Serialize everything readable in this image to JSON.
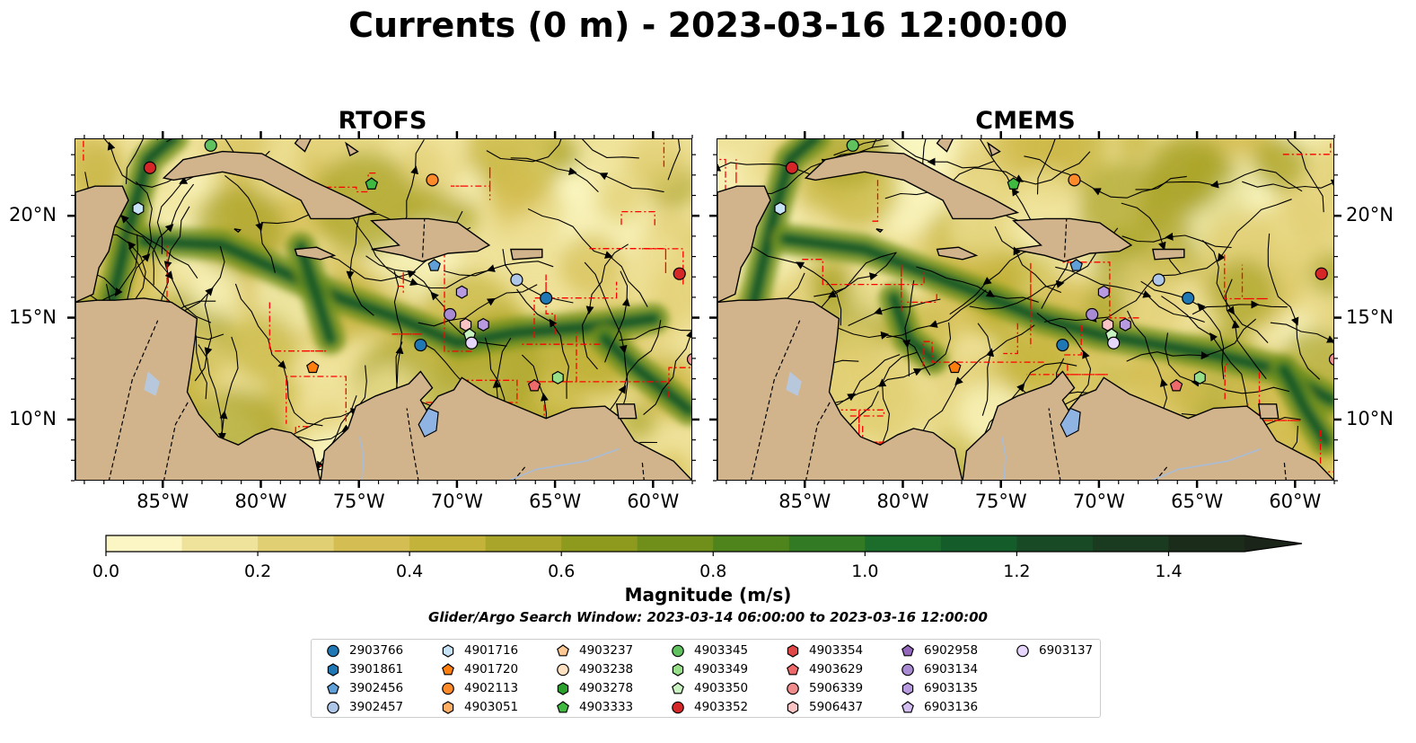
{
  "title": "Currents (0 m) - 2023-03-16 12:00:00",
  "panels": [
    {
      "title": "RTOFS"
    },
    {
      "title": "CMEMS"
    }
  ],
  "lon_ticks": [
    "85°W",
    "80°W",
    "75°W",
    "70°W",
    "65°W",
    "60°W"
  ],
  "lat_ticks": [
    "20°N",
    "15°N",
    "10°N"
  ],
  "colorbar": {
    "label": "Magnitude (m/s)",
    "ticks": [
      "0.0",
      "0.2",
      "0.4",
      "0.6",
      "0.8",
      "1.0",
      "1.2",
      "1.4"
    ],
    "range": [
      0,
      1.5
    ],
    "extend": "max",
    "colors": [
      "#fbf6c3",
      "#efe29a",
      "#e1cf73",
      "#d4bd53",
      "#c4b33b",
      "#a9a42a",
      "#8e9a1d",
      "#6f8e1a",
      "#4f831c",
      "#327a23",
      "#1c6c2b",
      "#155c2b",
      "#184a25",
      "#1a3b1f",
      "#1b2d1a"
    ],
    "extend_color": "#1b2418"
  },
  "search_window": "Glider/Argo Search Window: 2023-03-14 06:00:00 to 2023-03-16 12:00:00",
  "colors": {
    "land": "#d2b48c",
    "lake": "#8fb4e3",
    "river": "#a8bcd6",
    "eez": "#ff0000"
  },
  "legend": [
    {
      "id": "2903766",
      "marker": "circle",
      "color": "#1f77b4"
    },
    {
      "id": "3901861",
      "marker": "hexagon",
      "color": "#1f77b4"
    },
    {
      "id": "3902456",
      "marker": "pentagon",
      "color": "#5fa0d8"
    },
    {
      "id": "3902457",
      "marker": "circle",
      "color": "#aec7e8"
    },
    {
      "id": "4901716",
      "marker": "hexagon",
      "color": "#c6e2f7"
    },
    {
      "id": "4901720",
      "marker": "pentagon",
      "color": "#ff7f0e"
    },
    {
      "id": "4902113",
      "marker": "circle",
      "color": "#ff8a2a"
    },
    {
      "id": "4903051",
      "marker": "hexagon",
      "color": "#ffae64"
    },
    {
      "id": "4903237",
      "marker": "pentagon",
      "color": "#ffc994"
    },
    {
      "id": "4903238",
      "marker": "circle",
      "color": "#ffe0c0"
    },
    {
      "id": "4903278",
      "marker": "hexagon",
      "color": "#2ca02c"
    },
    {
      "id": "4903333",
      "marker": "pentagon",
      "color": "#3fb93f"
    },
    {
      "id": "4903345",
      "marker": "circle",
      "color": "#5fc25f"
    },
    {
      "id": "4903349",
      "marker": "hexagon",
      "color": "#98df8a"
    },
    {
      "id": "4903350",
      "marker": "pentagon",
      "color": "#c8f2bf"
    },
    {
      "id": "4903352",
      "marker": "circle",
      "color": "#d62728"
    },
    {
      "id": "4903354",
      "marker": "hexagon",
      "color": "#e04848"
    },
    {
      "id": "4903629",
      "marker": "pentagon",
      "color": "#ee6a6a"
    },
    {
      "id": "5906339",
      "marker": "circle",
      "color": "#f08c8c"
    },
    {
      "id": "5906437",
      "marker": "hexagon",
      "color": "#fbc4c4"
    },
    {
      "id": "6902958",
      "marker": "pentagon",
      "color": "#9467bd"
    },
    {
      "id": "6903134",
      "marker": "circle",
      "color": "#a98bd4"
    },
    {
      "id": "6903135",
      "marker": "hexagon",
      "color": "#b89ae0"
    },
    {
      "id": "6903136",
      "marker": "pentagon",
      "color": "#d3bdf0"
    },
    {
      "id": "6903137",
      "marker": "circle",
      "color": "#e6d6fb"
    }
  ],
  "floats_rtofs": [
    {
      "lon": -85.7,
      "lat": 22.4,
      "id": "4903352"
    },
    {
      "lon": -86.3,
      "lat": 20.4,
      "id": "4901716"
    },
    {
      "lon": -82.6,
      "lat": 23.5,
      "id": "4903345"
    },
    {
      "lon": -74.4,
      "lat": 21.6,
      "id": "4903333"
    },
    {
      "lon": -71.3,
      "lat": 21.8,
      "id": "4902113"
    },
    {
      "lon": -71.2,
      "lat": 17.6,
      "id": "3902456"
    },
    {
      "lon": -67.0,
      "lat": 16.9,
      "id": "3902457"
    },
    {
      "lon": -65.5,
      "lat": 16.0,
      "id": "2903766"
    },
    {
      "lon": -69.8,
      "lat": 16.3,
      "id": "6903135"
    },
    {
      "lon": -70.4,
      "lat": 15.2,
      "id": "6903134"
    },
    {
      "lon": -69.6,
      "lat": 14.7,
      "id": "5906437"
    },
    {
      "lon": -68.7,
      "lat": 14.7,
      "id": "6903135"
    },
    {
      "lon": -69.4,
      "lat": 14.2,
      "id": "4903350"
    },
    {
      "lon": -69.3,
      "lat": 13.8,
      "id": "6903137"
    },
    {
      "lon": -71.9,
      "lat": 13.7,
      "id": "2903766"
    },
    {
      "lon": -77.4,
      "lat": 12.6,
      "id": "4901720"
    },
    {
      "lon": -64.9,
      "lat": 12.1,
      "id": "4903349"
    },
    {
      "lon": -66.1,
      "lat": 11.7,
      "id": "4903629"
    },
    {
      "lon": -58.7,
      "lat": 17.2,
      "id": "4903352"
    },
    {
      "lon": -58.0,
      "lat": 13.0,
      "id": "5906339"
    }
  ],
  "floats_cmems": [
    {
      "lon": -85.7,
      "lat": 22.4,
      "id": "4903352"
    },
    {
      "lon": -86.3,
      "lat": 20.4,
      "id": "4901716"
    },
    {
      "lon": -82.6,
      "lat": 23.5,
      "id": "4903345"
    },
    {
      "lon": -74.4,
      "lat": 21.6,
      "id": "4903333"
    },
    {
      "lon": -71.3,
      "lat": 21.8,
      "id": "4902113"
    },
    {
      "lon": -71.2,
      "lat": 17.6,
      "id": "3902456"
    },
    {
      "lon": -67.0,
      "lat": 16.9,
      "id": "3902457"
    },
    {
      "lon": -65.5,
      "lat": 16.0,
      "id": "2903766"
    },
    {
      "lon": -69.8,
      "lat": 16.3,
      "id": "6903135"
    },
    {
      "lon": -70.4,
      "lat": 15.2,
      "id": "6903134"
    },
    {
      "lon": -69.6,
      "lat": 14.7,
      "id": "5906437"
    },
    {
      "lon": -68.7,
      "lat": 14.7,
      "id": "6903135"
    },
    {
      "lon": -69.4,
      "lat": 14.2,
      "id": "4903350"
    },
    {
      "lon": -69.3,
      "lat": 13.8,
      "id": "6903137"
    },
    {
      "lon": -71.9,
      "lat": 13.7,
      "id": "2903766"
    },
    {
      "lon": -77.4,
      "lat": 12.6,
      "id": "4901720"
    },
    {
      "lon": -64.9,
      "lat": 12.1,
      "id": "4903349"
    },
    {
      "lon": -66.1,
      "lat": 11.7,
      "id": "4903629"
    },
    {
      "lon": -58.7,
      "lat": 17.2,
      "id": "4903352"
    },
    {
      "lon": -58.0,
      "lat": 13.0,
      "id": "5906339"
    }
  ]
}
